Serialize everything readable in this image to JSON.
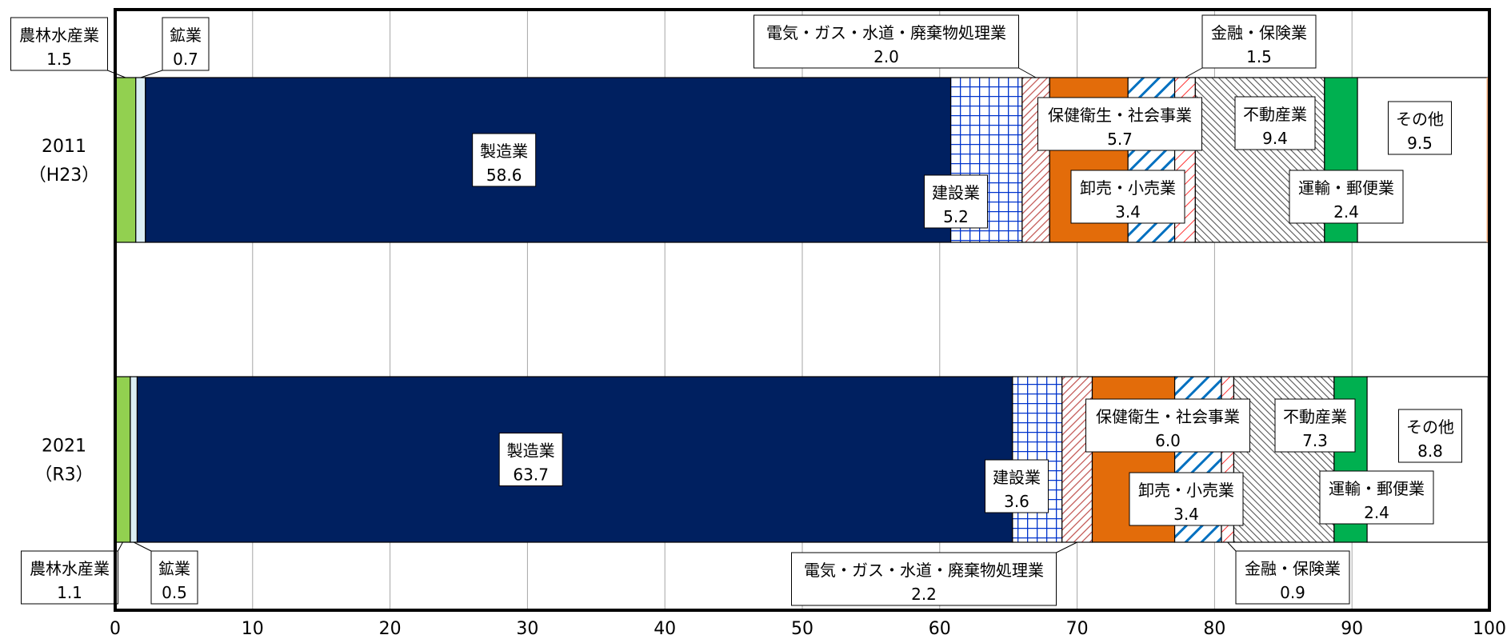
{
  "chart_data": {
    "type": "bar",
    "orientation": "horizontal",
    "stacked": true,
    "xlim": [
      0,
      100
    ],
    "xticks": [
      "0",
      "10",
      "20",
      "30",
      "40",
      "50",
      "60",
      "70",
      "80",
      "90",
      "100"
    ],
    "grid": true,
    "categories": [
      {
        "label1": "2011",
        "label2": "（H23）"
      },
      {
        "label1": "2021",
        "label2": "（R3）"
      }
    ],
    "series": [
      {
        "name": "農林水産業",
        "values": [
          1.5,
          1.1
        ],
        "color": "#92d050",
        "display": [
          "1.5",
          "1.1"
        ]
      },
      {
        "name": "鉱業",
        "values": [
          0.7,
          0.5
        ],
        "color": "#dbeef4",
        "display": [
          "0.7",
          "0.5"
        ]
      },
      {
        "name": "製造業",
        "values": [
          58.6,
          63.7
        ],
        "color": "#002060",
        "display": [
          "58.6",
          "63.7"
        ]
      },
      {
        "name": "建設業",
        "values": [
          5.2,
          3.6
        ],
        "color": "#0070c0",
        "display": [
          "5.2",
          "3.6"
        ]
      },
      {
        "name": "電気・ガス・水道・廃棄物処理業",
        "values": [
          2.0,
          2.2
        ],
        "color": "#c00000",
        "display": [
          "2.0",
          "2.2"
        ]
      },
      {
        "name": "保健衛生・社会事業",
        "values": [
          5.7,
          6.0
        ],
        "color": "#e36c0a",
        "display": [
          "5.7",
          "6.0"
        ]
      },
      {
        "name": "卸売・小売業",
        "values": [
          3.4,
          3.4
        ],
        "color": "#0070c0",
        "display": [
          "3.4",
          "3.4"
        ]
      },
      {
        "name": "金融・保険業",
        "values": [
          1.5,
          0.9
        ],
        "color": "#ff0000",
        "display": [
          "1.5",
          "0.9"
        ]
      },
      {
        "name": "不動産業",
        "values": [
          9.4,
          7.3
        ],
        "color": "#595959",
        "display": [
          "9.4",
          "7.3"
        ]
      },
      {
        "name": "運輸・郵便業",
        "values": [
          2.4,
          2.4
        ],
        "color": "#00b050",
        "display": [
          "2.4",
          "2.4"
        ]
      },
      {
        "name": "その他",
        "values": [
          9.5,
          8.8
        ],
        "color": "#ffffff",
        "display": [
          "9.5",
          "8.8"
        ]
      }
    ]
  }
}
